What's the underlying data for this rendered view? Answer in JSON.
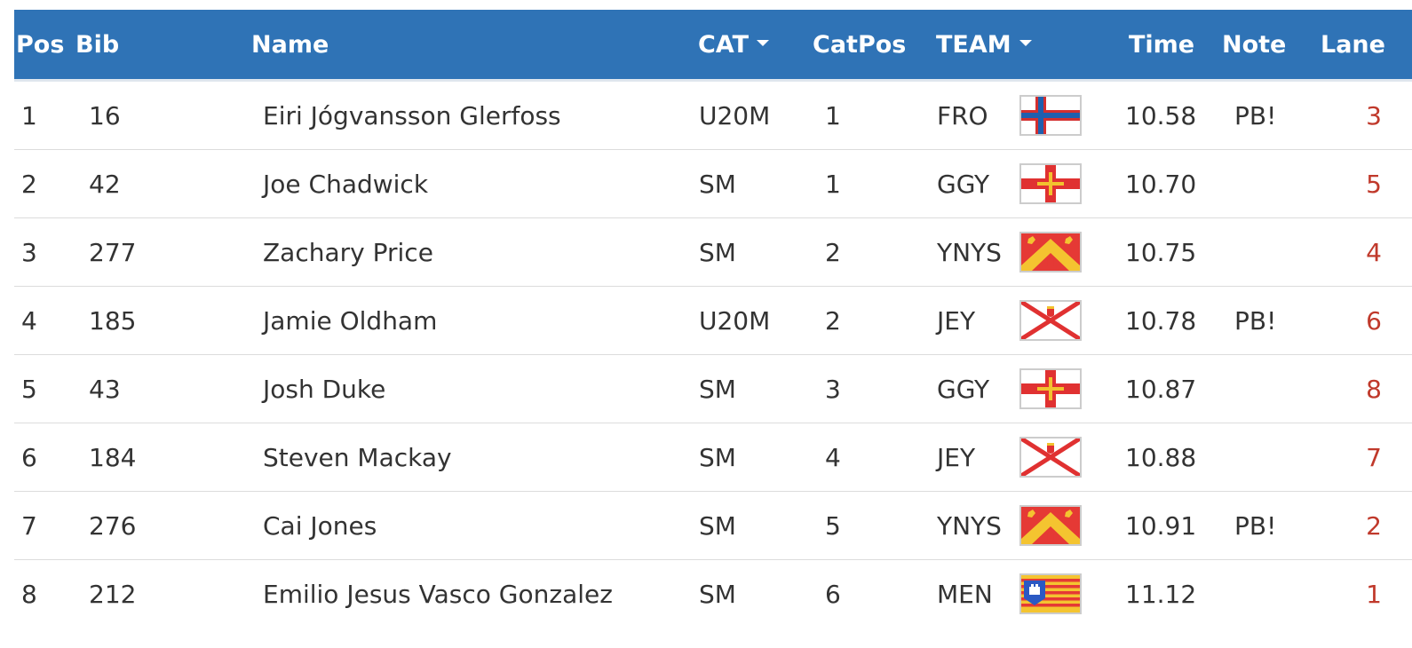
{
  "columns": {
    "pos": "Pos",
    "bib": "Bib",
    "name": "Name",
    "cat": "CAT",
    "catpos": "CatPos",
    "team": "TEAM",
    "time": "Time",
    "note": "Note",
    "lane": "Lane"
  },
  "colors": {
    "header_bg": "#2f73b6",
    "header_text": "#ffffff",
    "lane_text": "#c0392b",
    "row_divider": "#dcdcdc"
  },
  "rows": [
    {
      "pos": "1",
      "bib": "16",
      "name": "Eiri Jógvansson Glerfoss",
      "cat": "U20M",
      "catpos": "1",
      "team": "FRO",
      "flag": "faroe-islands-flag",
      "time": "10.58",
      "note": "PB!",
      "lane": "3"
    },
    {
      "pos": "2",
      "bib": "42",
      "name": "Joe Chadwick",
      "cat": "SM",
      "catpos": "1",
      "team": "GGY",
      "flag": "guernsey-flag",
      "time": "10.70",
      "note": "",
      "lane": "5"
    },
    {
      "pos": "3",
      "bib": "277",
      "name": "Zachary Price",
      "cat": "SM",
      "catpos": "2",
      "team": "YNYS",
      "flag": "anglesey-flag",
      "time": "10.75",
      "note": "",
      "lane": "4"
    },
    {
      "pos": "4",
      "bib": "185",
      "name": "Jamie Oldham",
      "cat": "U20M",
      "catpos": "2",
      "team": "JEY",
      "flag": "jersey-flag",
      "time": "10.78",
      "note": "PB!",
      "lane": "6"
    },
    {
      "pos": "5",
      "bib": "43",
      "name": "Josh Duke",
      "cat": "SM",
      "catpos": "3",
      "team": "GGY",
      "flag": "guernsey-flag",
      "time": "10.87",
      "note": "",
      "lane": "8"
    },
    {
      "pos": "6",
      "bib": "184",
      "name": "Steven Mackay",
      "cat": "SM",
      "catpos": "4",
      "team": "JEY",
      "flag": "jersey-flag",
      "time": "10.88",
      "note": "",
      "lane": "7"
    },
    {
      "pos": "7",
      "bib": "276",
      "name": "Cai Jones",
      "cat": "SM",
      "catpos": "5",
      "team": "YNYS",
      "flag": "anglesey-flag",
      "time": "10.91",
      "note": "PB!",
      "lane": "2"
    },
    {
      "pos": "8",
      "bib": "212",
      "name": "Emilio Jesus Vasco Gonzalez",
      "cat": "SM",
      "catpos": "6",
      "team": "MEN",
      "flag": "menorca-flag",
      "time": "11.12",
      "note": "",
      "lane": "1"
    }
  ]
}
